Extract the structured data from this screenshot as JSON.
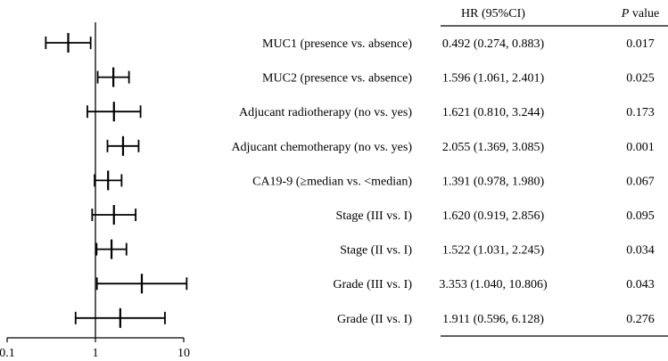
{
  "chart_data": {
    "type": "forest",
    "x_scale": "log",
    "xlim": [
      0.1,
      10
    ],
    "x_ticks": [
      "0.1",
      "1",
      "10"
    ],
    "reference_line": 1,
    "header": {
      "hr_label": "HR (95%CI)",
      "p_italic": "P",
      "p_rest": " value"
    },
    "rows": [
      {
        "label": "MUC1 (presence vs. absence)",
        "hr": 0.492,
        "lower": 0.274,
        "upper": 0.883,
        "hr_text": "0.492 (0.274, 0.883)",
        "p": "0.017"
      },
      {
        "label": "MUC2 (presence vs. absence)",
        "hr": 1.596,
        "lower": 1.061,
        "upper": 2.401,
        "hr_text": "1.596 (1.061, 2.401)",
        "p": "0.025"
      },
      {
        "label": "Adjucant radiotherapy (no vs. yes)",
        "hr": 1.621,
        "lower": 0.81,
        "upper": 3.244,
        "hr_text": "1.621 (0.810, 3.244)",
        "p": "0.173"
      },
      {
        "label": "Adjucant chemotherapy (no vs. yes)",
        "hr": 2.055,
        "lower": 1.369,
        "upper": 3.085,
        "hr_text": "2.055 (1.369, 3.085)",
        "p": "0.001"
      },
      {
        "label": "CA19-9 (≥median vs. <median)",
        "hr": 1.391,
        "lower": 0.978,
        "upper": 1.98,
        "hr_text": "1.391 (0.978, 1.980)",
        "p": "0.067"
      },
      {
        "label": "Stage (III vs. I)",
        "hr": 1.62,
        "lower": 0.919,
        "upper": 2.856,
        "hr_text": "1.620 (0.919, 2.856)",
        "p": "0.095"
      },
      {
        "label": "Stage (II vs. I)",
        "hr": 1.522,
        "lower": 1.031,
        "upper": 2.245,
        "hr_text": "1.522 (1.031, 2.245)",
        "p": "0.034"
      },
      {
        "label": "Grade (III vs. I)",
        "hr": 3.353,
        "lower": 1.04,
        "upper": 10.806,
        "hr_text": "3.353 (1.040, 10.806)",
        "p": "0.043"
      },
      {
        "label": "Grade (II vs. I)",
        "hr": 1.911,
        "lower": 0.596,
        "upper": 6.128,
        "hr_text": "1.911 (0.596, 6.128)",
        "p": "0.276"
      }
    ]
  }
}
